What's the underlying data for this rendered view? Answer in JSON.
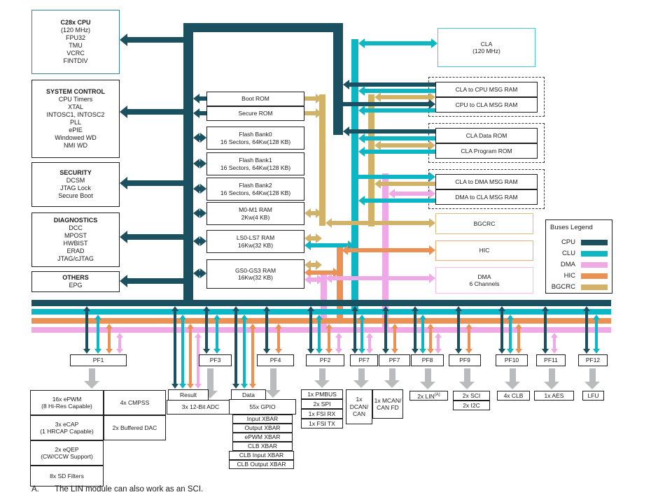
{
  "colors": {
    "cpu": "#1a5060",
    "clu": "#0cb6c5",
    "dma": "#efa9e7",
    "hic": "#ec9154",
    "bgcrc": "#d1b266",
    "gray": "#babbbd"
  },
  "left_blocks": {
    "cpu": {
      "title": "C28x CPU",
      "lines": [
        "(120 MHz)",
        "FPU32",
        "TMU",
        "VCRC",
        "FINTDIV"
      ]
    },
    "system_control": {
      "title": "SYSTEM CONTROL",
      "lines": [
        "CPU Timers",
        "XTAL",
        "INTOSC1, INTOSC2",
        "PLL",
        "ePIE",
        "Windowed WD",
        "NMI WD"
      ]
    },
    "security": {
      "title": "SECURITY",
      "lines": [
        "DCSM",
        "JTAG Lock",
        "Secure Boot"
      ]
    },
    "diagnostics": {
      "title": "DIAGNOSTICS",
      "lines": [
        "DCC",
        "MPOST",
        "HWBIST",
        "ERAD",
        "JTAG/cJTAG"
      ]
    },
    "others": {
      "title": "OTHERS",
      "lines": [
        "EPG"
      ]
    }
  },
  "memory_blocks": {
    "boot_rom": [
      "Boot ROM"
    ],
    "secure_rom": [
      "Secure ROM"
    ],
    "flash_bank0": [
      "Flash Bank0",
      "16 Sectors, 64Kw(128 KB)"
    ],
    "flash_bank1": [
      "Flash Bank1",
      "16 Sectors, 64Kw(128 KB)"
    ],
    "flash_bank2": [
      "Flash Bank2",
      "16 Sectors, 64Kw(128 KB)"
    ],
    "m0_m1_ram": [
      "M0-M1 RAM",
      "2Kw(4 KB)"
    ],
    "ls_ram": [
      "LS0-LS7 RAM",
      "16Kw(32 KB)"
    ],
    "gs_ram": [
      "GS0-GS3 RAM",
      "16Kw(32 KB)"
    ]
  },
  "right_blocks": {
    "cla": [
      "CLA",
      "(120 MHz)"
    ],
    "cla_to_cpu": "CLA to CPU MSG RAM",
    "cpu_to_cla": "CPU to CLA MSG RAM",
    "cla_data_rom": "CLA Data ROM",
    "cla_program_rom": "CLA Program ROM",
    "cla_to_dma": "CLA to DMA MSG RAM",
    "dma_to_cla": "DMA to CLA MSG RAM",
    "bgcrc": "BGCRC",
    "hic": "HIC",
    "dma": [
      "DMA",
      "6 Channels"
    ]
  },
  "legend": {
    "title": "Buses Legend",
    "entries": [
      {
        "label": "CPU",
        "color": "#1a5060"
      },
      {
        "label": "CLU",
        "color": "#0cb6c5"
      },
      {
        "label": "DMA",
        "color": "#efa9e7"
      },
      {
        "label": "HIC",
        "color": "#ec9154"
      },
      {
        "label": "BGCRC",
        "color": "#d1b266"
      }
    ]
  },
  "pf_boxes": [
    "PF1",
    "PF3",
    "PF4",
    "PF2",
    "PF7",
    "PF7",
    "PF8",
    "PF9",
    "PF10",
    "PF11",
    "PF12"
  ],
  "small_boxes": {
    "result": "Result",
    "data": "Data"
  },
  "peripherals": {
    "epwm": [
      "16x ePWM",
      "(8 Hi-Res Capable)"
    ],
    "cmpss": [
      "4x CMPSS"
    ],
    "ecap": [
      "3x eCAP",
      "(1 HRCAP Capable)"
    ],
    "dac": [
      "2x Buffered DAC"
    ],
    "eqep": [
      "2x eQEP",
      "(CW/CCW Support)"
    ],
    "sd_filters": [
      "8x SD Filters"
    ],
    "adc": [
      "3x 12-Bit ADC"
    ],
    "gpio": [
      "55x GPIO"
    ],
    "input_xbar": [
      "Input XBAR"
    ],
    "output_xbar": [
      "Output XBAR"
    ],
    "epwm_xbar": [
      "ePWM XBAR"
    ],
    "clb_xbar": [
      "CLB XBAR"
    ],
    "clb_input_xbar": [
      "CLB Input XBAR"
    ],
    "clb_output_xbar": [
      "CLB Output XBAR"
    ],
    "pmbus": [
      "1x PMBUS"
    ],
    "spi": [
      "2x SPI"
    ],
    "fsi_rx": [
      "1x FSI RX"
    ],
    "fsi_tx": [
      "1x FSI TX"
    ],
    "dcan": [
      "1x",
      "DCAN/",
      "CAN"
    ],
    "mcan": [
      "1x MCAN/",
      "CAN FD"
    ],
    "lin": {
      "label": "2x LIN",
      "sup": "(A)"
    },
    "sci": [
      "2x SCI"
    ],
    "i2c": [
      "2x I2C"
    ],
    "clb": [
      "4x CLB"
    ],
    "aes": [
      "1x AES"
    ],
    "lfu": [
      "LFU"
    ]
  },
  "footnote": {
    "marker": "A.",
    "text": "The LIN module can also work as an SCI."
  }
}
